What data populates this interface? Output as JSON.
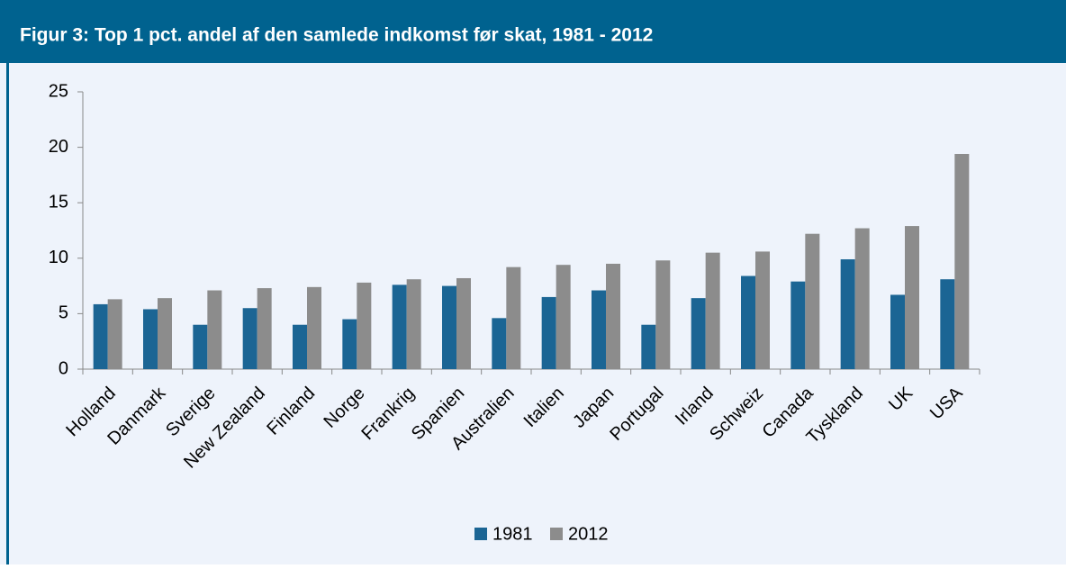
{
  "chart_data": {
    "type": "bar",
    "title": "Figur 3: Top 1 pct. andel af den samlede indkomst før skat, 1981 - 2012",
    "categories": [
      "Holland",
      "Danmark",
      "Sverige",
      "New Zealand",
      "Finland",
      "Norge",
      "Frankrig",
      "Spanien",
      "Australien",
      "Italien",
      "Japan",
      "Portugal",
      "Irland",
      "Schweiz",
      "Canada",
      "Tyskland",
      "UK",
      "USA"
    ],
    "series": [
      {
        "name": "1981",
        "color": "#1b6594",
        "values": [
          5.85,
          5.4,
          4.0,
          5.5,
          4.0,
          4.5,
          7.6,
          7.5,
          4.6,
          6.5,
          7.1,
          4.0,
          6.4,
          8.4,
          7.9,
          9.9,
          6.7,
          8.1
        ]
      },
      {
        "name": "2012",
        "color": "#8c8c8c",
        "values": [
          6.3,
          6.4,
          7.1,
          7.3,
          7.4,
          7.8,
          8.1,
          8.2,
          9.2,
          9.4,
          9.5,
          9.8,
          10.5,
          10.6,
          12.2,
          12.7,
          12.9,
          19.4
        ]
      }
    ],
    "ylim": [
      0,
      25
    ],
    "yticks": [
      0,
      5,
      10,
      15,
      20,
      25
    ],
    "grid": false,
    "legend": "bottom"
  }
}
